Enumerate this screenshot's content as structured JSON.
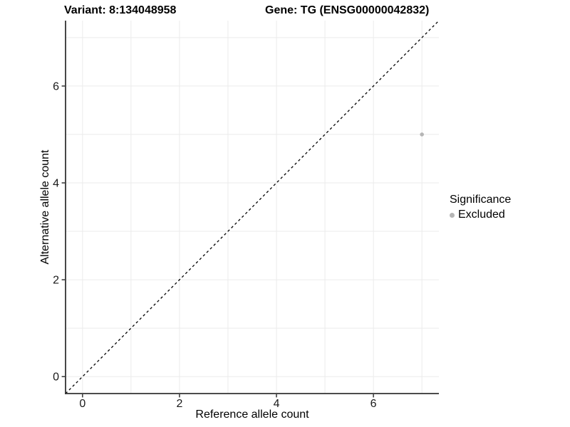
{
  "chart_data": {
    "type": "scatter",
    "title_left": "Variant: 8:134048958",
    "title_right": "Gene: TG (ENSG00000042832)",
    "xlabel": "Reference allele count",
    "ylabel": "Alternative allele count",
    "xlim": [
      -0.35,
      7.35
    ],
    "ylim": [
      -0.35,
      7.35
    ],
    "xticks": [
      "0",
      "2",
      "4",
      "6"
    ],
    "xtick_values": [
      0,
      2,
      4,
      6
    ],
    "yticks": [
      "0",
      "2",
      "4",
      "6"
    ],
    "ytick_values": [
      0,
      2,
      4,
      6
    ],
    "grid_step": 1,
    "grid_on": true,
    "identity_line": {
      "slope": 1,
      "intercept": 0,
      "style": "dashed",
      "color": "#000000"
    },
    "series": [
      {
        "name": "Excluded",
        "points": [
          {
            "x": 7,
            "y": 5
          }
        ],
        "color": "#b5b5b5"
      }
    ],
    "legend": {
      "title": "Significance",
      "position": "right",
      "items": [
        {
          "label": "Excluded",
          "color": "#b5b5b5"
        }
      ]
    },
    "colors": {
      "point": "#b5b5b5",
      "gridline": "#ebebeb",
      "axis": "#333333",
      "tick_text": "#1a1a1a"
    }
  }
}
